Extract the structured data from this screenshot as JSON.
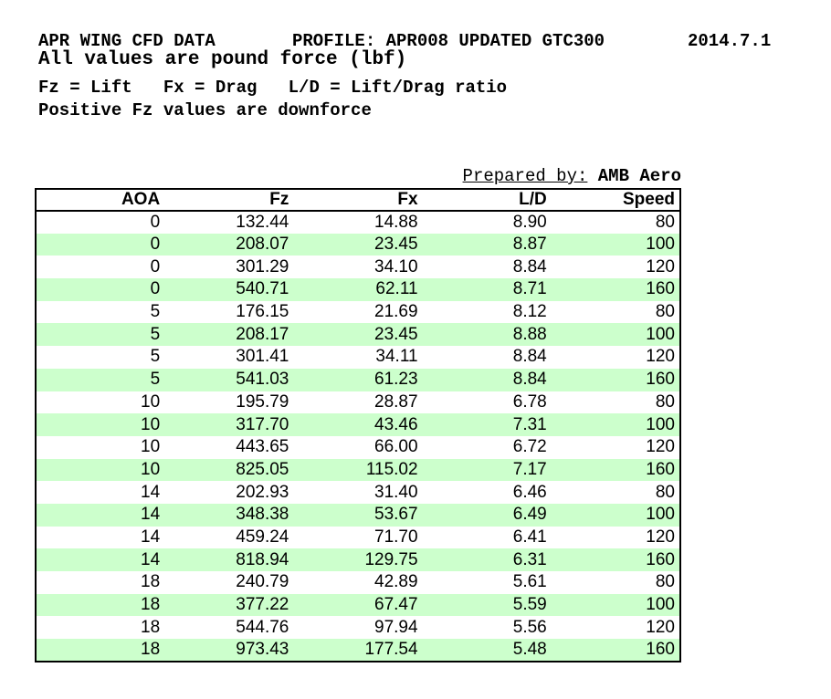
{
  "page": {
    "title_left": "APR WING CFD DATA",
    "title_profile": "PROFILE: APR008 UPDATED GTC300",
    "title_date": "2014.7.1",
    "subtitle": "All values are pound force (lbf)",
    "legend": "Fz = Lift   Fx = Drag   L/D = Lift/Drag ratio",
    "note": "Positive Fz values are downforce",
    "prepared_by_label": "Prepared by:",
    "prepared_by_value": "AMB Aero"
  },
  "colors": {
    "row_alt_green": "#ccffcc",
    "table_border": "#000000",
    "text": "#000000",
    "background": "#ffffff"
  },
  "chart_data": {
    "type": "table",
    "title": "APR WING CFD DATA",
    "columns": [
      "AOA",
      "Fz",
      "Fx",
      "L/D",
      "Speed"
    ],
    "rows": [
      [
        "0",
        "132.44",
        "14.88",
        "8.90",
        "80"
      ],
      [
        "0",
        "208.07",
        "23.45",
        "8.87",
        "100"
      ],
      [
        "0",
        "301.29",
        "34.10",
        "8.84",
        "120"
      ],
      [
        "0",
        "540.71",
        "62.11",
        "8.71",
        "160"
      ],
      [
        "5",
        "176.15",
        "21.69",
        "8.12",
        "80"
      ],
      [
        "5",
        "208.17",
        "23.45",
        "8.88",
        "100"
      ],
      [
        "5",
        "301.41",
        "34.11",
        "8.84",
        "120"
      ],
      [
        "5",
        "541.03",
        "61.23",
        "8.84",
        "160"
      ],
      [
        "10",
        "195.79",
        "28.87",
        "6.78",
        "80"
      ],
      [
        "10",
        "317.70",
        "43.46",
        "7.31",
        "100"
      ],
      [
        "10",
        "443.65",
        "66.00",
        "6.72",
        "120"
      ],
      [
        "10",
        "825.05",
        "115.02",
        "7.17",
        "160"
      ],
      [
        "14",
        "202.93",
        "31.40",
        "6.46",
        "80"
      ],
      [
        "14",
        "348.38",
        "53.67",
        "6.49",
        "100"
      ],
      [
        "14",
        "459.24",
        "71.70",
        "6.41",
        "120"
      ],
      [
        "14",
        "818.94",
        "129.75",
        "6.31",
        "160"
      ],
      [
        "18",
        "240.79",
        "42.89",
        "5.61",
        "80"
      ],
      [
        "18",
        "377.22",
        "67.47",
        "5.59",
        "100"
      ],
      [
        "18",
        "544.76",
        "97.94",
        "5.56",
        "120"
      ],
      [
        "18",
        "973.43",
        "177.54",
        "5.48",
        "160"
      ]
    ]
  }
}
